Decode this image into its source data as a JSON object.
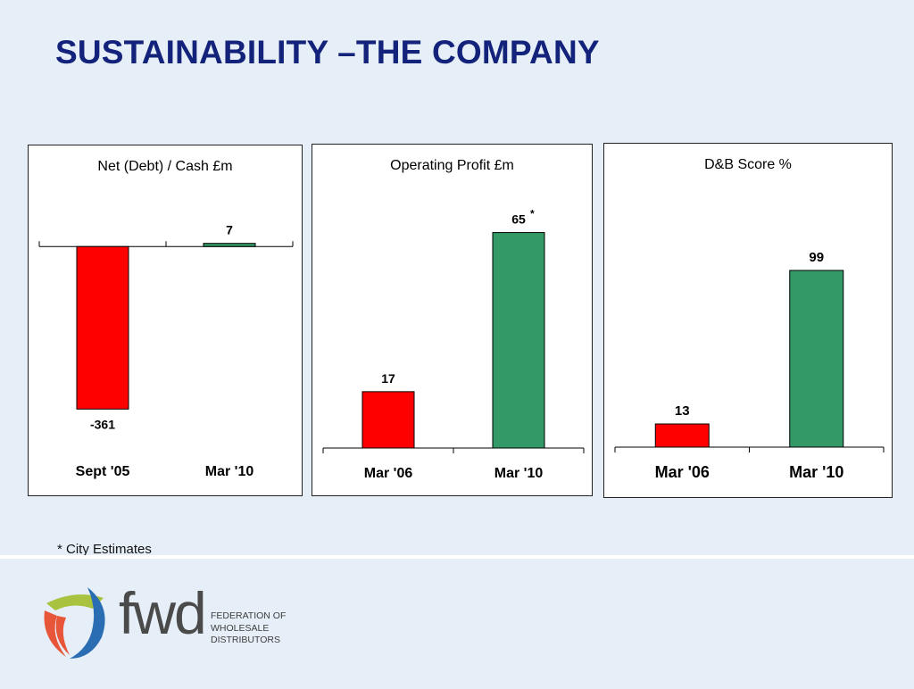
{
  "slide": {
    "title": "SUSTAINABILITY –THE COMPANY",
    "footnote": "* City Estimates"
  },
  "brand": {
    "wordmark": "fwd",
    "lines": [
      "FEDERATION OF",
      "WHOLESALE",
      "DISTRIBUTORS"
    ],
    "logo_icon": "fwd-roundel-logo",
    "colors": {
      "blue": "#2a6db3",
      "orange": "#e8563a",
      "lime": "#a9c23f",
      "text": "#4a4a4a"
    }
  },
  "colors": {
    "red": "#ff0000",
    "green": "#339966",
    "title": "#13227a"
  },
  "chart_data": [
    {
      "type": "bar",
      "title": "Net (Debt) / Cash £m",
      "categories": [
        "Sept '05",
        "Mar '10"
      ],
      "values": [
        -361,
        7
      ],
      "value_labels": [
        "-361",
        "7"
      ],
      "bar_colors": [
        "#ff0000",
        "#339966"
      ],
      "ylim": [
        -400,
        50
      ],
      "grid": false,
      "legend": "none"
    },
    {
      "type": "bar",
      "title": "Operating Profit £m",
      "categories": [
        "Mar '06",
        "Mar '10"
      ],
      "values": [
        17,
        65
      ],
      "value_labels": [
        "17",
        "65"
      ],
      "annotations": [
        "",
        "*"
      ],
      "bar_colors": [
        "#ff0000",
        "#339966"
      ],
      "ylim": [
        0,
        70
      ],
      "grid": false,
      "legend": "none"
    },
    {
      "type": "bar",
      "title": "D&B Score %",
      "categories": [
        "Mar '06",
        "Mar '10"
      ],
      "values": [
        13,
        99
      ],
      "value_labels": [
        "13",
        "99"
      ],
      "bar_colors": [
        "#ff0000",
        "#339966"
      ],
      "ylim": [
        0,
        130
      ],
      "grid": false,
      "legend": "none"
    }
  ]
}
